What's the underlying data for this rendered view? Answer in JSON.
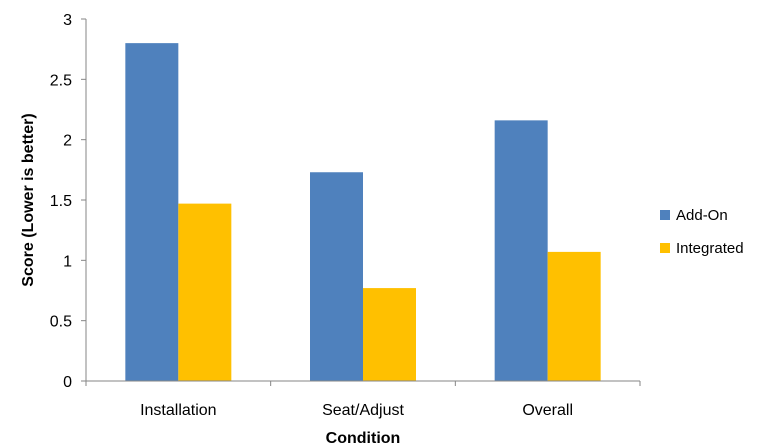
{
  "chart_data": {
    "type": "bar",
    "categories": [
      "Installation",
      "Seat/Adjust",
      "Overall"
    ],
    "series": [
      {
        "name": "Add-On",
        "values": [
          2.8,
          1.73,
          2.16
        ],
        "color": "#4F81BD"
      },
      {
        "name": "Integrated",
        "values": [
          1.47,
          0.77,
          1.07
        ],
        "color": "#FFC000"
      }
    ],
    "yticks": [
      "0",
      "0.5",
      "1",
      "1.5",
      "2",
      "2.5",
      "3"
    ],
    "ylim": [
      0,
      3
    ],
    "xlabel": "Condition",
    "ylabel": "Score (Lower is better)",
    "grid": false,
    "legend_position": "right"
  }
}
